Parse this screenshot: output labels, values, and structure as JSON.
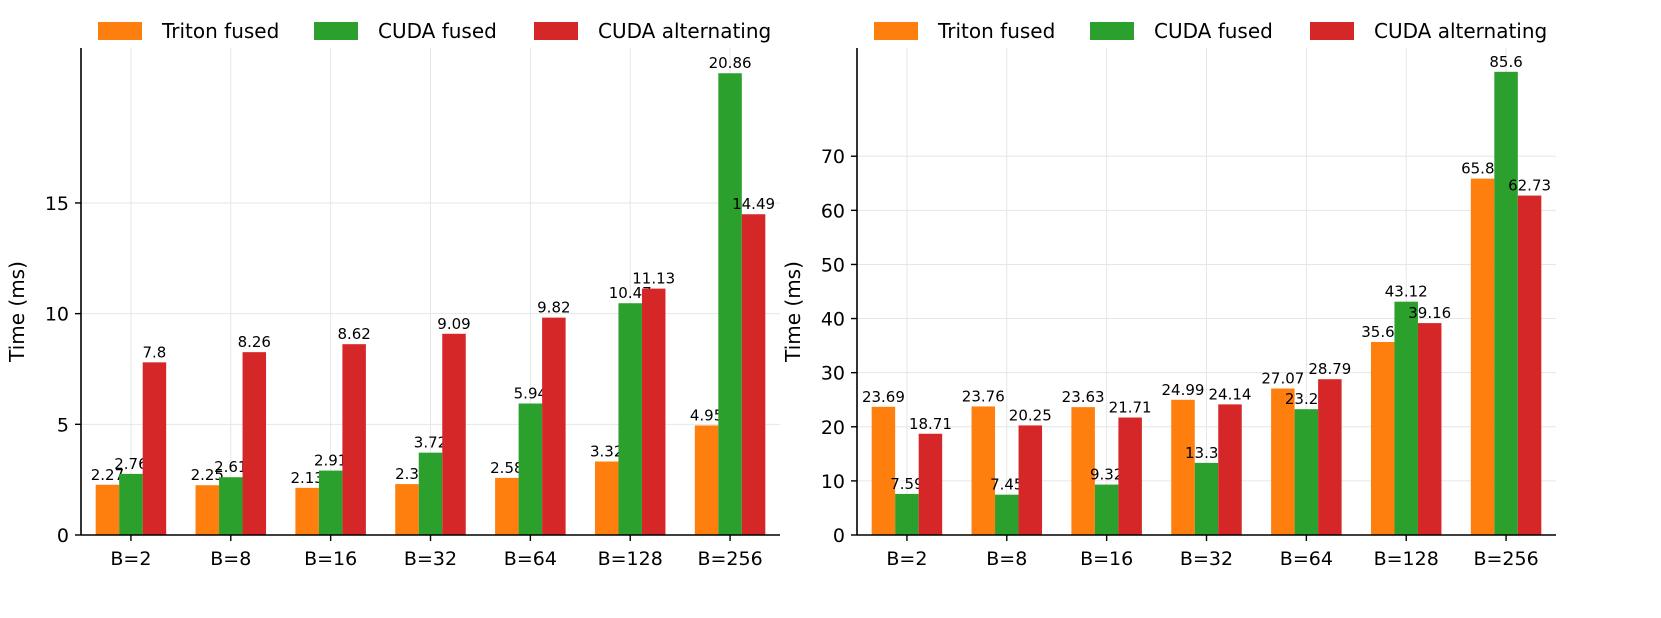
{
  "chart_data": [
    {
      "type": "bar",
      "title": "",
      "xlabel": "",
      "ylabel": "Time (ms)",
      "ylim": [
        0,
        22
      ],
      "yticks": [
        0,
        5,
        10,
        15
      ],
      "grid": true,
      "legend_position": "top",
      "categories": [
        "B=2",
        "B=8",
        "B=16",
        "B=32",
        "B=64",
        "B=128",
        "B=256"
      ],
      "series": [
        {
          "name": "Triton fused",
          "color": "#ff7f0e",
          "values": [
            2.27,
            2.25,
            2.13,
            2.3,
            2.58,
            3.32,
            4.95
          ]
        },
        {
          "name": "CUDA fused",
          "color": "#2ca02c",
          "values": [
            2.76,
            2.61,
            2.91,
            3.72,
            5.94,
            10.47,
            20.86
          ]
        },
        {
          "name": "CUDA alternating",
          "color": "#d62728",
          "values": [
            7.8,
            8.26,
            8.62,
            9.09,
            9.82,
            11.13,
            14.49
          ]
        }
      ]
    },
    {
      "type": "bar",
      "title": "",
      "xlabel": "",
      "ylabel": "Time (ms)",
      "ylim": [
        0,
        90
      ],
      "yticks": [
        0,
        10,
        20,
        30,
        40,
        50,
        60,
        70
      ],
      "grid": true,
      "legend_position": "top",
      "categories": [
        "B=2",
        "B=8",
        "B=16",
        "B=32",
        "B=64",
        "B=128",
        "B=256"
      ],
      "series": [
        {
          "name": "Triton fused",
          "color": "#ff7f0e",
          "values": [
            23.69,
            23.76,
            23.63,
            24.99,
            27.07,
            35.67,
            65.86
          ]
        },
        {
          "name": "CUDA fused",
          "color": "#2ca02c",
          "values": [
            7.59,
            7.45,
            9.32,
            13.33,
            23.25,
            43.12,
            85.6
          ]
        },
        {
          "name": "CUDA alternating",
          "color": "#d62728",
          "values": [
            18.71,
            20.25,
            21.71,
            24.14,
            28.79,
            39.16,
            62.73
          ]
        }
      ]
    }
  ]
}
